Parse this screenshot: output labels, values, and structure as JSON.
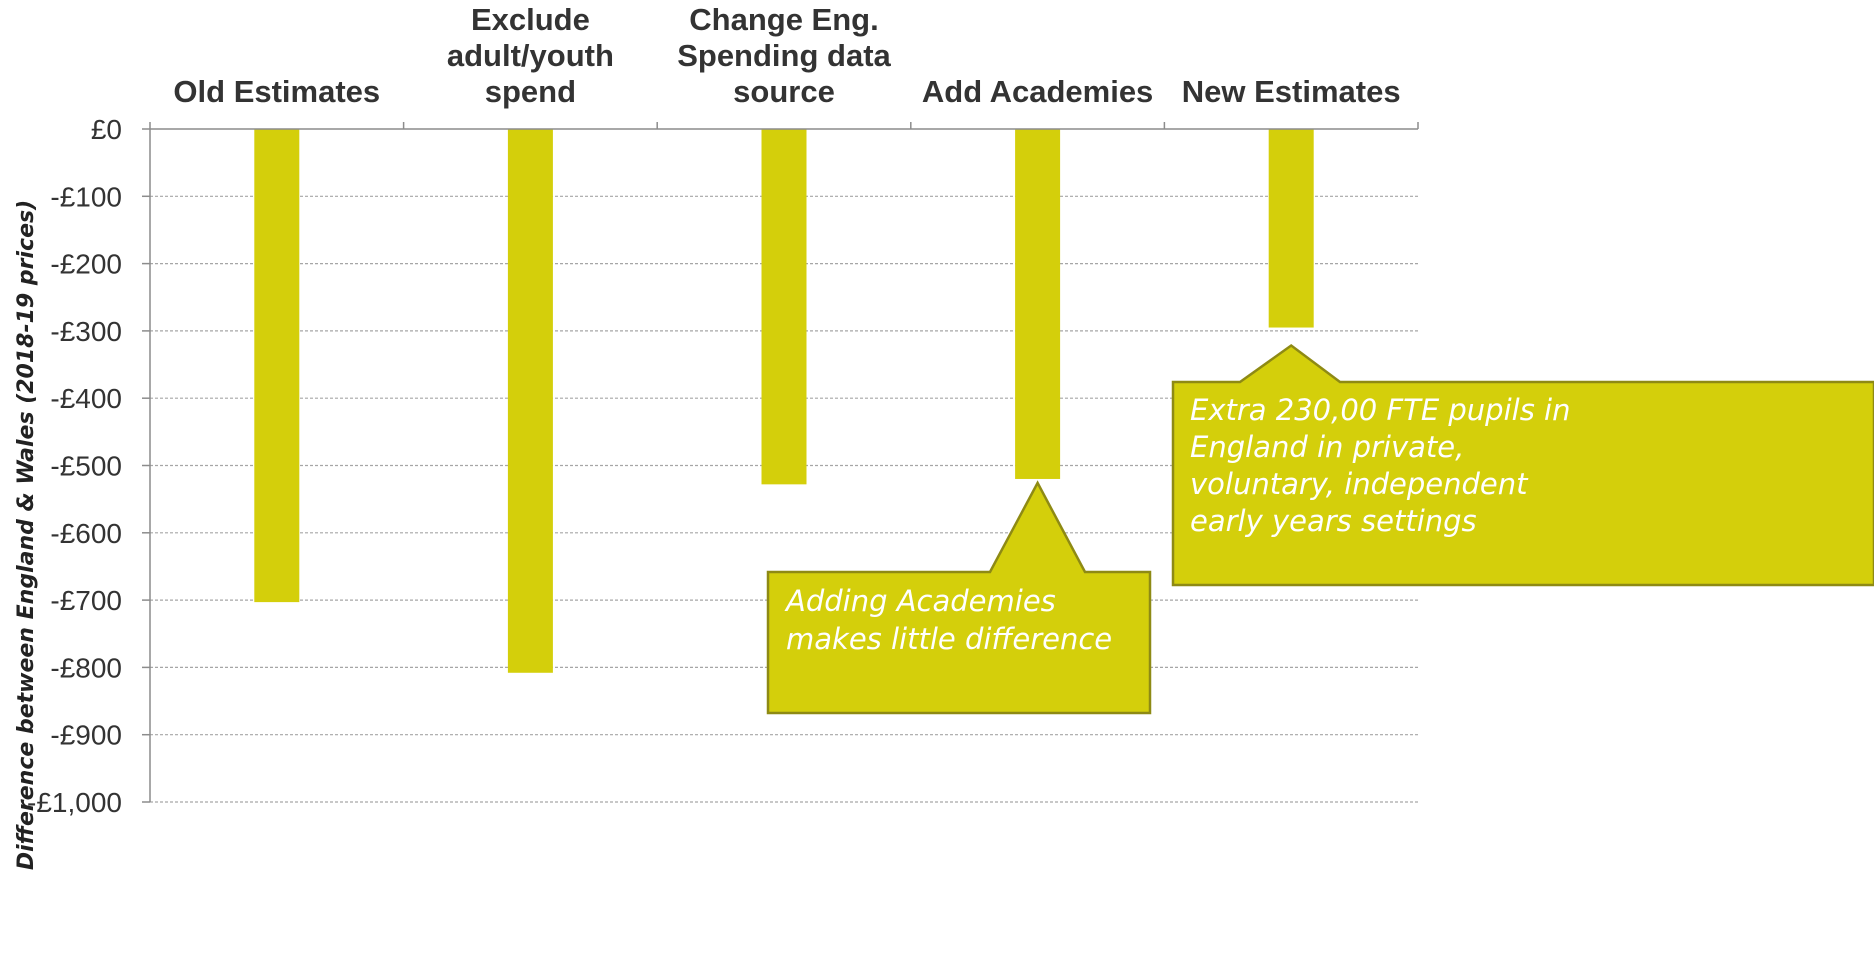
{
  "chart_data": {
    "type": "bar",
    "categories": [
      [
        "Old Estimates"
      ],
      [
        "Exclude",
        "adult/youth",
        "spend"
      ],
      [
        "Change Eng.",
        "Spending data",
        "source"
      ],
      [
        "Add Academies"
      ],
      [
        "New Estimates"
      ]
    ],
    "values": [
      -703,
      -808,
      -528,
      -520,
      -295
    ],
    "ylabel": "Difference between England & Wales (2018-19 prices)",
    "ylim": [
      -1000,
      0
    ],
    "yticks": [
      0,
      -100,
      -200,
      -300,
      -400,
      -500,
      -600,
      -700,
      -800,
      -900,
      -1000
    ],
    "ytick_labels": [
      "£0",
      "-£100",
      "-£200",
      "-£300",
      "-£400",
      "-£500",
      "-£600",
      "-£700",
      "-£800",
      "-£900",
      "-£1,000"
    ],
    "grid": "horizontal dashed",
    "legend": "none",
    "colors": {
      "bar": "#d4cf0b",
      "callout_border": "#8e8a14",
      "grid": "#a6a6a6",
      "axis": "#8c8c8c"
    },
    "annotations": [
      {
        "category_index": 3,
        "lines": [
          "Adding Academies",
          "makes little difference"
        ]
      },
      {
        "category_index": 4,
        "lines": [
          "Extra 230,00 FTE pupils in",
          "England in private,",
          "voluntary, independent",
          "early years settings"
        ]
      }
    ]
  }
}
